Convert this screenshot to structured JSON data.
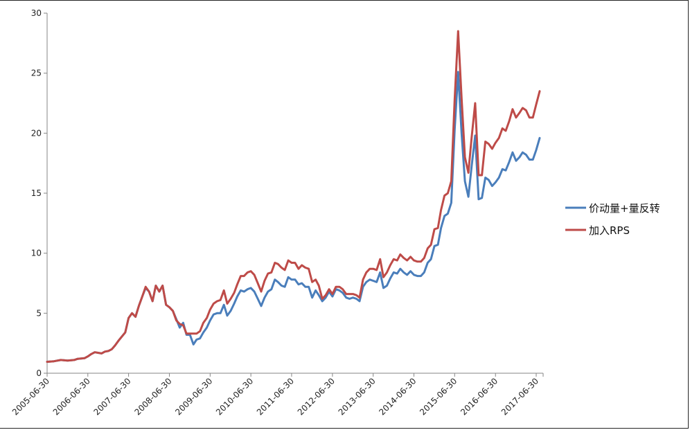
{
  "chart_data": {
    "type": "line",
    "title": "",
    "xlabel": "",
    "ylabel": "",
    "ylim": [
      0,
      30
    ],
    "yticks": [
      0,
      5,
      10,
      15,
      20,
      25,
      30
    ],
    "xlim": [
      "2005-06-30",
      "2017-08-31"
    ],
    "xticks": [
      "2005-06-30",
      "2006-06-30",
      "2007-06-30",
      "2008-06-30",
      "2009-06-30",
      "2010-06-30",
      "2011-06-30",
      "2012-06-30",
      "2013-06-30",
      "2014-06-30",
      "2015-06-30",
      "2016-06-30",
      "2017-06-30"
    ],
    "grid": false,
    "legend_position": "right",
    "series": [
      {
        "name": "价动量+量反转",
        "color": "#4a7ebb",
        "points": [
          [
            "2005-06-30",
            0.95
          ],
          [
            "2005-08-31",
            1.0
          ],
          [
            "2005-10-31",
            1.1
          ],
          [
            "2005-12-31",
            1.05
          ],
          [
            "2006-02-28",
            1.1
          ],
          [
            "2006-03-31",
            1.2
          ],
          [
            "2006-05-31",
            1.25
          ],
          [
            "2006-06-30",
            1.4
          ],
          [
            "2006-07-31",
            1.6
          ],
          [
            "2006-08-31",
            1.75
          ],
          [
            "2006-10-31",
            1.65
          ],
          [
            "2006-11-30",
            1.8
          ],
          [
            "2006-12-31",
            1.85
          ],
          [
            "2007-01-31",
            2.0
          ],
          [
            "2007-02-28",
            2.3
          ],
          [
            "2007-03-31",
            2.7
          ],
          [
            "2007-05-31",
            3.4
          ],
          [
            "2007-06-30",
            4.6
          ],
          [
            "2007-07-31",
            5.0
          ],
          [
            "2007-08-31",
            4.7
          ],
          [
            "2007-09-30",
            5.6
          ],
          [
            "2007-10-31",
            6.4
          ],
          [
            "2007-11-30",
            7.1
          ],
          [
            "2007-12-31",
            6.8
          ],
          [
            "2008-01-31",
            6.0
          ],
          [
            "2008-02-29",
            7.3
          ],
          [
            "2008-03-31",
            6.8
          ],
          [
            "2008-04-30",
            7.3
          ],
          [
            "2008-05-31",
            5.7
          ],
          [
            "2008-06-30",
            5.5
          ],
          [
            "2008-07-31",
            5.2
          ],
          [
            "2008-08-31",
            4.5
          ],
          [
            "2008-09-30",
            3.8
          ],
          [
            "2008-10-31",
            4.2
          ],
          [
            "2008-11-30",
            3.2
          ],
          [
            "2008-12-31",
            3.2
          ],
          [
            "2009-01-31",
            2.4
          ],
          [
            "2009-02-28",
            2.8
          ],
          [
            "2009-03-31",
            2.9
          ],
          [
            "2009-04-30",
            3.4
          ],
          [
            "2009-05-31",
            3.8
          ],
          [
            "2009-06-30",
            4.4
          ],
          [
            "2009-07-31",
            4.9
          ],
          [
            "2009-08-31",
            5.0
          ],
          [
            "2009-09-30",
            5.0
          ],
          [
            "2009-10-31",
            5.7
          ],
          [
            "2009-11-30",
            4.8
          ],
          [
            "2009-12-31",
            5.2
          ],
          [
            "2010-01-31",
            5.8
          ],
          [
            "2010-02-28",
            6.4
          ],
          [
            "2010-03-31",
            6.9
          ],
          [
            "2010-04-30",
            6.8
          ],
          [
            "2010-05-31",
            7.0
          ],
          [
            "2010-06-30",
            7.1
          ],
          [
            "2010-07-31",
            6.8
          ],
          [
            "2010-08-31",
            6.2
          ],
          [
            "2010-09-30",
            5.6
          ],
          [
            "2010-10-31",
            6.3
          ],
          [
            "2010-11-30",
            6.8
          ],
          [
            "2010-12-31",
            7.0
          ],
          [
            "2011-01-31",
            7.8
          ],
          [
            "2011-02-28",
            7.6
          ],
          [
            "2011-03-31",
            7.3
          ],
          [
            "2011-04-30",
            7.2
          ],
          [
            "2011-05-31",
            8.0
          ],
          [
            "2011-06-30",
            7.8
          ],
          [
            "2011-07-31",
            7.8
          ],
          [
            "2011-08-31",
            7.4
          ],
          [
            "2011-09-30",
            7.5
          ],
          [
            "2011-10-31",
            7.2
          ],
          [
            "2011-11-30",
            7.2
          ],
          [
            "2011-12-31",
            6.3
          ],
          [
            "2012-01-31",
            6.9
          ],
          [
            "2012-02-29",
            6.5
          ],
          [
            "2012-03-31",
            6.0
          ],
          [
            "2012-04-30",
            6.3
          ],
          [
            "2012-05-31",
            6.8
          ],
          [
            "2012-06-30",
            6.4
          ],
          [
            "2012-07-31",
            7.0
          ],
          [
            "2012-08-31",
            6.9
          ],
          [
            "2012-09-30",
            6.7
          ],
          [
            "2012-10-31",
            6.3
          ],
          [
            "2012-11-30",
            6.2
          ],
          [
            "2012-12-31",
            6.3
          ],
          [
            "2013-01-31",
            6.2
          ],
          [
            "2013-02-28",
            6.0
          ],
          [
            "2013-03-31",
            7.2
          ],
          [
            "2013-04-30",
            7.6
          ],
          [
            "2013-05-31",
            7.8
          ],
          [
            "2013-06-30",
            7.7
          ],
          [
            "2013-07-31",
            7.6
          ],
          [
            "2013-08-31",
            8.4
          ],
          [
            "2013-09-30",
            7.1
          ],
          [
            "2013-10-31",
            7.3
          ],
          [
            "2013-11-30",
            7.9
          ],
          [
            "2013-12-31",
            8.4
          ],
          [
            "2014-01-31",
            8.3
          ],
          [
            "2014-02-28",
            8.7
          ],
          [
            "2014-03-31",
            8.4
          ],
          [
            "2014-04-30",
            8.2
          ],
          [
            "2014-05-31",
            8.5
          ],
          [
            "2014-06-30",
            8.2
          ],
          [
            "2014-07-31",
            8.1
          ],
          [
            "2014-08-31",
            8.1
          ],
          [
            "2014-09-30",
            8.4
          ],
          [
            "2014-10-31",
            9.2
          ],
          [
            "2014-11-30",
            9.5
          ],
          [
            "2014-12-31",
            10.6
          ],
          [
            "2015-01-31",
            10.7
          ],
          [
            "2015-02-28",
            12.1
          ],
          [
            "2015-03-31",
            13.1
          ],
          [
            "2015-04-30",
            13.3
          ],
          [
            "2015-05-31",
            14.2
          ],
          [
            "2015-06-30",
            20.3
          ],
          [
            "2015-07-31",
            25.1
          ],
          [
            "2015-08-31",
            20.0
          ],
          [
            "2015-09-30",
            16.0
          ],
          [
            "2015-10-31",
            14.7
          ],
          [
            "2015-11-30",
            17.3
          ],
          [
            "2015-12-31",
            19.8
          ],
          [
            "2016-01-31",
            14.5
          ],
          [
            "2016-02-29",
            14.6
          ],
          [
            "2016-03-31",
            16.3
          ],
          [
            "2016-04-30",
            16.1
          ],
          [
            "2016-05-31",
            15.6
          ],
          [
            "2016-06-30",
            15.9
          ],
          [
            "2016-07-31",
            16.3
          ],
          [
            "2016-08-31",
            17.0
          ],
          [
            "2016-09-30",
            16.9
          ],
          [
            "2016-10-31",
            17.6
          ],
          [
            "2016-11-30",
            18.4
          ],
          [
            "2016-12-31",
            17.7
          ],
          [
            "2017-01-31",
            18.0
          ],
          [
            "2017-02-28",
            18.4
          ],
          [
            "2017-03-31",
            18.2
          ],
          [
            "2017-04-30",
            17.8
          ],
          [
            "2017-05-31",
            17.8
          ],
          [
            "2017-06-30",
            18.6
          ],
          [
            "2017-07-31",
            19.6
          ]
        ]
      },
      {
        "name": "加入RPS",
        "color": "#be4b48",
        "points": [
          [
            "2005-06-30",
            0.95
          ],
          [
            "2005-08-31",
            1.0
          ],
          [
            "2005-10-31",
            1.1
          ],
          [
            "2005-12-31",
            1.05
          ],
          [
            "2006-02-28",
            1.1
          ],
          [
            "2006-03-31",
            1.2
          ],
          [
            "2006-05-31",
            1.25
          ],
          [
            "2006-06-30",
            1.4
          ],
          [
            "2006-07-31",
            1.6
          ],
          [
            "2006-08-31",
            1.75
          ],
          [
            "2006-10-31",
            1.65
          ],
          [
            "2006-11-30",
            1.8
          ],
          [
            "2006-12-31",
            1.85
          ],
          [
            "2007-01-31",
            2.0
          ],
          [
            "2007-02-28",
            2.3
          ],
          [
            "2007-03-31",
            2.7
          ],
          [
            "2007-05-31",
            3.4
          ],
          [
            "2007-06-30",
            4.6
          ],
          [
            "2007-07-31",
            5.0
          ],
          [
            "2007-08-31",
            4.7
          ],
          [
            "2007-09-30",
            5.6
          ],
          [
            "2007-10-31",
            6.4
          ],
          [
            "2007-11-30",
            7.2
          ],
          [
            "2007-12-31",
            6.8
          ],
          [
            "2008-01-31",
            6.0
          ],
          [
            "2008-02-29",
            7.3
          ],
          [
            "2008-03-31",
            6.8
          ],
          [
            "2008-04-30",
            7.3
          ],
          [
            "2008-05-31",
            5.7
          ],
          [
            "2008-06-30",
            5.5
          ],
          [
            "2008-07-31",
            5.2
          ],
          [
            "2008-08-31",
            4.4
          ],
          [
            "2008-09-30",
            4.1
          ],
          [
            "2008-10-31",
            4.0
          ],
          [
            "2008-11-30",
            3.3
          ],
          [
            "2008-12-31",
            3.3
          ],
          [
            "2009-01-31",
            3.3
          ],
          [
            "2009-02-28",
            3.3
          ],
          [
            "2009-03-31",
            3.5
          ],
          [
            "2009-04-30",
            4.2
          ],
          [
            "2009-05-31",
            4.6
          ],
          [
            "2009-06-30",
            5.3
          ],
          [
            "2009-07-31",
            5.8
          ],
          [
            "2009-08-31",
            6.0
          ],
          [
            "2009-09-30",
            6.1
          ],
          [
            "2009-10-31",
            6.9
          ],
          [
            "2009-11-30",
            5.8
          ],
          [
            "2009-12-31",
            6.2
          ],
          [
            "2010-01-31",
            6.7
          ],
          [
            "2010-02-28",
            7.4
          ],
          [
            "2010-03-31",
            8.1
          ],
          [
            "2010-04-30",
            8.1
          ],
          [
            "2010-05-31",
            8.4
          ],
          [
            "2010-06-30",
            8.5
          ],
          [
            "2010-07-31",
            8.2
          ],
          [
            "2010-08-31",
            7.5
          ],
          [
            "2010-09-30",
            6.8
          ],
          [
            "2010-10-31",
            7.7
          ],
          [
            "2010-11-30",
            8.3
          ],
          [
            "2010-12-31",
            8.4
          ],
          [
            "2011-01-31",
            9.2
          ],
          [
            "2011-02-28",
            9.1
          ],
          [
            "2011-03-31",
            8.8
          ],
          [
            "2011-04-30",
            8.6
          ],
          [
            "2011-05-31",
            9.4
          ],
          [
            "2011-06-30",
            9.2
          ],
          [
            "2011-07-31",
            9.2
          ],
          [
            "2011-08-31",
            8.7
          ],
          [
            "2011-09-30",
            9.0
          ],
          [
            "2011-10-31",
            8.8
          ],
          [
            "2011-11-30",
            8.7
          ],
          [
            "2011-12-31",
            7.6
          ],
          [
            "2012-01-31",
            7.8
          ],
          [
            "2012-02-29",
            7.3
          ],
          [
            "2012-03-31",
            6.2
          ],
          [
            "2012-04-30",
            6.5
          ],
          [
            "2012-05-31",
            7.0
          ],
          [
            "2012-06-30",
            6.6
          ],
          [
            "2012-07-31",
            7.2
          ],
          [
            "2012-08-31",
            7.2
          ],
          [
            "2012-09-30",
            7.0
          ],
          [
            "2012-10-31",
            6.6
          ],
          [
            "2012-11-30",
            6.6
          ],
          [
            "2012-12-31",
            6.6
          ],
          [
            "2013-01-31",
            6.5
          ],
          [
            "2013-02-28",
            6.3
          ],
          [
            "2013-03-31",
            7.8
          ],
          [
            "2013-04-30",
            8.4
          ],
          [
            "2013-05-31",
            8.7
          ],
          [
            "2013-06-30",
            8.7
          ],
          [
            "2013-07-31",
            8.6
          ],
          [
            "2013-08-31",
            9.5
          ],
          [
            "2013-09-30",
            8.0
          ],
          [
            "2013-10-31",
            8.4
          ],
          [
            "2013-11-30",
            9.0
          ],
          [
            "2013-12-31",
            9.5
          ],
          [
            "2014-01-31",
            9.4
          ],
          [
            "2014-02-28",
            9.9
          ],
          [
            "2014-03-31",
            9.6
          ],
          [
            "2014-04-30",
            9.4
          ],
          [
            "2014-05-31",
            9.7
          ],
          [
            "2014-06-30",
            9.4
          ],
          [
            "2014-07-31",
            9.3
          ],
          [
            "2014-08-31",
            9.3
          ],
          [
            "2014-09-30",
            9.6
          ],
          [
            "2014-10-31",
            10.4
          ],
          [
            "2014-11-30",
            10.7
          ],
          [
            "2014-12-31",
            12.0
          ],
          [
            "2015-01-31",
            12.1
          ],
          [
            "2015-02-28",
            13.6
          ],
          [
            "2015-03-31",
            14.8
          ],
          [
            "2015-04-30",
            15.0
          ],
          [
            "2015-05-31",
            16.0
          ],
          [
            "2015-06-30",
            22.8
          ],
          [
            "2015-07-31",
            28.5
          ],
          [
            "2015-08-31",
            22.9
          ],
          [
            "2015-09-30",
            18.0
          ],
          [
            "2015-10-31",
            16.7
          ],
          [
            "2015-11-30",
            19.7
          ],
          [
            "2015-12-31",
            22.5
          ],
          [
            "2016-01-31",
            16.5
          ],
          [
            "2016-02-29",
            16.5
          ],
          [
            "2016-03-31",
            19.3
          ],
          [
            "2016-04-30",
            19.1
          ],
          [
            "2016-05-31",
            18.7
          ],
          [
            "2016-06-30",
            19.2
          ],
          [
            "2016-07-31",
            19.6
          ],
          [
            "2016-08-31",
            20.4
          ],
          [
            "2016-09-30",
            20.2
          ],
          [
            "2016-10-31",
            21.0
          ],
          [
            "2016-11-30",
            22.0
          ],
          [
            "2016-12-31",
            21.3
          ],
          [
            "2017-01-31",
            21.7
          ],
          [
            "2017-02-28",
            22.1
          ],
          [
            "2017-03-31",
            21.9
          ],
          [
            "2017-04-30",
            21.3
          ],
          [
            "2017-05-31",
            21.3
          ],
          [
            "2017-06-30",
            22.4
          ],
          [
            "2017-07-31",
            23.5
          ]
        ]
      }
    ]
  }
}
